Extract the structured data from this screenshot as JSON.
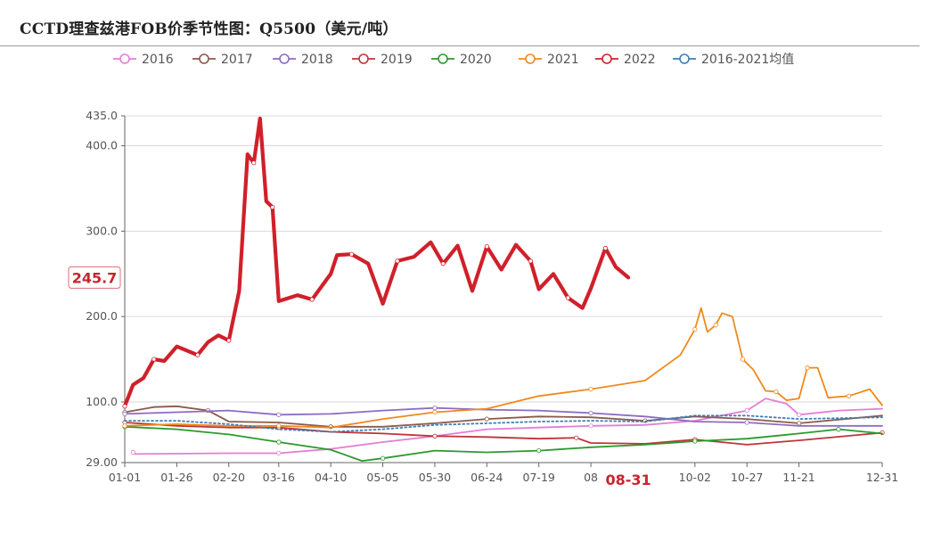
{
  "page": {
    "title": "CCTD理查兹港FOB价季节性图：Q5500（美元/吨）"
  },
  "colors": {
    "2016": "#e27fd4",
    "2017": "#8b5a4a",
    "2018": "#8e6bc4",
    "2019": "#c0343a",
    "2020": "#2c9a2c",
    "2021": "#ee8a1d",
    "2022": "#d0202a",
    "avg": "#3d7fb8",
    "grid": "#d9d9d9",
    "axis": "#666666",
    "marker_label_border": "#e06c75",
    "marker_label_text": "#c8232c"
  },
  "chart_data": {
    "type": "line",
    "title": "CCTD理查兹港FOB价季节性图：Q5500（美元/吨）",
    "xlabel": "",
    "ylabel": "",
    "x_axis_type": "date-of-year",
    "x_ticks": [
      "01-01",
      "01-26",
      "02-20",
      "03-16",
      "04-10",
      "05-05",
      "05-30",
      "06-24",
      "07-19",
      "08",
      "10-02",
      "10-27",
      "11-21",
      "12-31"
    ],
    "y_ticks": [
      "29.00",
      "100.0",
      "200.0",
      "300.0",
      "400.0",
      "435.0"
    ],
    "ylim": [
      29,
      435
    ],
    "grid": true,
    "legend_position": "top",
    "highlight": {
      "x": "08-31",
      "y_label": "245.7"
    },
    "series": [
      {
        "name": "2016",
        "points": [
          [
            "01-05",
            41
          ],
          [
            "01-06",
            39
          ],
          [
            "02-20",
            40
          ],
          [
            "03-16",
            40
          ],
          [
            "04-10",
            45
          ],
          [
            "05-05",
            53
          ],
          [
            "05-30",
            60
          ],
          [
            "06-24",
            68
          ],
          [
            "07-19",
            70
          ],
          [
            "08-13",
            72
          ],
          [
            "09-08",
            73
          ],
          [
            "10-02",
            78
          ],
          [
            "10-27",
            90
          ],
          [
            "11-05",
            104
          ],
          [
            "11-15",
            98
          ],
          [
            "11-21",
            85
          ],
          [
            "12-10",
            90
          ],
          [
            "12-31",
            92
          ]
        ]
      },
      {
        "name": "2017",
        "points": [
          [
            "01-01",
            88
          ],
          [
            "01-15",
            94
          ],
          [
            "01-26",
            95
          ],
          [
            "02-10",
            90
          ],
          [
            "02-20",
            77
          ],
          [
            "03-16",
            76
          ],
          [
            "04-10",
            71
          ],
          [
            "05-05",
            71
          ],
          [
            "05-30",
            75
          ],
          [
            "06-24",
            80
          ],
          [
            "07-19",
            83
          ],
          [
            "08-13",
            82
          ],
          [
            "09-08",
            78
          ],
          [
            "10-02",
            83
          ],
          [
            "10-27",
            80
          ],
          [
            "11-21",
            75
          ],
          [
            "12-31",
            84
          ]
        ]
      },
      {
        "name": "2018",
        "points": [
          [
            "01-01",
            86
          ],
          [
            "01-26",
            88
          ],
          [
            "02-20",
            90
          ],
          [
            "03-16",
            85
          ],
          [
            "04-10",
            86
          ],
          [
            "05-05",
            90
          ],
          [
            "05-30",
            93
          ],
          [
            "06-24",
            91
          ],
          [
            "07-19",
            90
          ],
          [
            "08-13",
            87
          ],
          [
            "09-08",
            83
          ],
          [
            "10-02",
            77
          ],
          [
            "10-27",
            76
          ],
          [
            "11-21",
            72
          ],
          [
            "12-31",
            72
          ]
        ]
      },
      {
        "name": "2019",
        "points": [
          [
            "01-01",
            76
          ],
          [
            "01-26",
            72
          ],
          [
            "02-20",
            70
          ],
          [
            "03-16",
            70
          ],
          [
            "04-10",
            65
          ],
          [
            "05-05",
            63
          ],
          [
            "05-30",
            60
          ],
          [
            "06-24",
            59
          ],
          [
            "07-19",
            57
          ],
          [
            "08-06",
            58
          ],
          [
            "08-13",
            52
          ],
          [
            "09-08",
            51
          ],
          [
            "10-02",
            56
          ],
          [
            "10-27",
            50
          ],
          [
            "11-21",
            55
          ],
          [
            "12-31",
            64
          ]
        ]
      },
      {
        "name": "2020",
        "points": [
          [
            "01-01",
            71
          ],
          [
            "01-26",
            68
          ],
          [
            "02-20",
            62
          ],
          [
            "03-16",
            53
          ],
          [
            "04-10",
            44
          ],
          [
            "04-25",
            31
          ],
          [
            "05-05",
            34
          ],
          [
            "05-30",
            43
          ],
          [
            "06-24",
            41
          ],
          [
            "07-19",
            43
          ],
          [
            "08-13",
            47
          ],
          [
            "09-08",
            50
          ],
          [
            "10-02",
            54
          ],
          [
            "10-27",
            57
          ],
          [
            "11-21",
            63
          ],
          [
            "12-10",
            68
          ],
          [
            "12-31",
            63
          ]
        ]
      },
      {
        "name": "2021",
        "points": [
          [
            "01-01",
            72
          ],
          [
            "01-26",
            74
          ],
          [
            "02-20",
            72
          ],
          [
            "03-16",
            72
          ],
          [
            "04-10",
            70
          ],
          [
            "05-05",
            80
          ],
          [
            "05-30",
            88
          ],
          [
            "06-24",
            92
          ],
          [
            "07-19",
            107
          ],
          [
            "08-13",
            115
          ],
          [
            "09-08",
            125
          ],
          [
            "09-25",
            155
          ],
          [
            "10-02",
            185
          ],
          [
            "10-05",
            210
          ],
          [
            "10-08",
            182
          ],
          [
            "10-12",
            190
          ],
          [
            "10-15",
            204
          ],
          [
            "10-20",
            200
          ],
          [
            "10-25",
            150
          ],
          [
            "10-30",
            138
          ],
          [
            "11-05",
            113
          ],
          [
            "11-10",
            112
          ],
          [
            "11-15",
            102
          ],
          [
            "11-21",
            104
          ],
          [
            "11-25",
            140
          ],
          [
            "11-30",
            140
          ],
          [
            "12-05",
            105
          ],
          [
            "12-15",
            107
          ],
          [
            "12-25",
            115
          ],
          [
            "12-31",
            96
          ]
        ]
      },
      {
        "name": "2022",
        "points": [
          [
            "01-01",
            95
          ],
          [
            "01-05",
            120
          ],
          [
            "01-10",
            128
          ],
          [
            "01-15",
            150
          ],
          [
            "01-20",
            148
          ],
          [
            "01-26",
            165
          ],
          [
            "02-05",
            155
          ],
          [
            "02-10",
            170
          ],
          [
            "02-15",
            178
          ],
          [
            "02-20",
            172
          ],
          [
            "02-25",
            230
          ],
          [
            "03-01",
            390
          ],
          [
            "03-04",
            380
          ],
          [
            "03-07",
            432
          ],
          [
            "03-10",
            335
          ],
          [
            "03-13",
            328
          ],
          [
            "03-16",
            218
          ],
          [
            "03-25",
            225
          ],
          [
            "04-01",
            220
          ],
          [
            "04-10",
            250
          ],
          [
            "04-13",
            272
          ],
          [
            "04-20",
            273
          ],
          [
            "04-28",
            262
          ],
          [
            "05-05",
            215
          ],
          [
            "05-12",
            265
          ],
          [
            "05-20",
            270
          ],
          [
            "05-28",
            287
          ],
          [
            "06-03",
            262
          ],
          [
            "06-10",
            283
          ],
          [
            "06-17",
            230
          ],
          [
            "06-24",
            282
          ],
          [
            "07-01",
            255
          ],
          [
            "07-08",
            284
          ],
          [
            "07-15",
            265
          ],
          [
            "07-19",
            232
          ],
          [
            "07-26",
            250
          ],
          [
            "08-02",
            222
          ],
          [
            "08-09",
            210
          ],
          [
            "08-13",
            233
          ],
          [
            "08-20",
            280
          ],
          [
            "08-25",
            258
          ],
          [
            "08-31",
            245.7
          ]
        ]
      },
      {
        "name": "2016-2021均值",
        "points": [
          [
            "01-01",
            78
          ],
          [
            "01-26",
            78
          ],
          [
            "02-20",
            74
          ],
          [
            "03-16",
            68
          ],
          [
            "04-10",
            65
          ],
          [
            "05-05",
            68
          ],
          [
            "05-30",
            73
          ],
          [
            "06-24",
            75
          ],
          [
            "07-19",
            77
          ],
          [
            "08-13",
            78
          ],
          [
            "09-08",
            77
          ],
          [
            "10-02",
            84
          ],
          [
            "10-27",
            84
          ],
          [
            "11-21",
            80
          ],
          [
            "12-31",
            82
          ]
        ]
      }
    ]
  }
}
